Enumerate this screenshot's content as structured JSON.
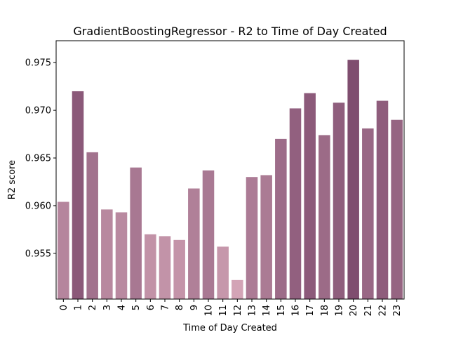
{
  "chart_data": {
    "type": "bar",
    "title": "GradientBoostingRegressor - R2 to Time of Day Created",
    "xlabel": "Time of Day Created",
    "ylabel": "R2 score",
    "categories": [
      "0",
      "1",
      "2",
      "3",
      "4",
      "5",
      "6",
      "7",
      "8",
      "9",
      "10",
      "11",
      "12",
      "13",
      "14",
      "15",
      "16",
      "17",
      "18",
      "19",
      "20",
      "21",
      "22",
      "23"
    ],
    "values": [
      0.9604,
      0.972,
      0.9656,
      0.9596,
      0.9593,
      0.964,
      0.957,
      0.9568,
      0.9564,
      0.9618,
      0.9637,
      0.9557,
      0.9522,
      0.963,
      0.9632,
      0.967,
      0.9702,
      0.9718,
      0.9674,
      0.9708,
      0.9753,
      0.9681,
      0.971,
      0.969
    ],
    "ylim": [
      0.9502,
      0.9773
    ],
    "yticks": [
      0.955,
      0.96,
      0.965,
      0.97,
      0.975
    ],
    "ytick_labels": [
      "0.955",
      "0.960",
      "0.965",
      "0.970",
      "0.975"
    ],
    "color_low": "#d3a4b6",
    "color_high": "#7f4d6f",
    "grid": false,
    "legend": "none"
  }
}
